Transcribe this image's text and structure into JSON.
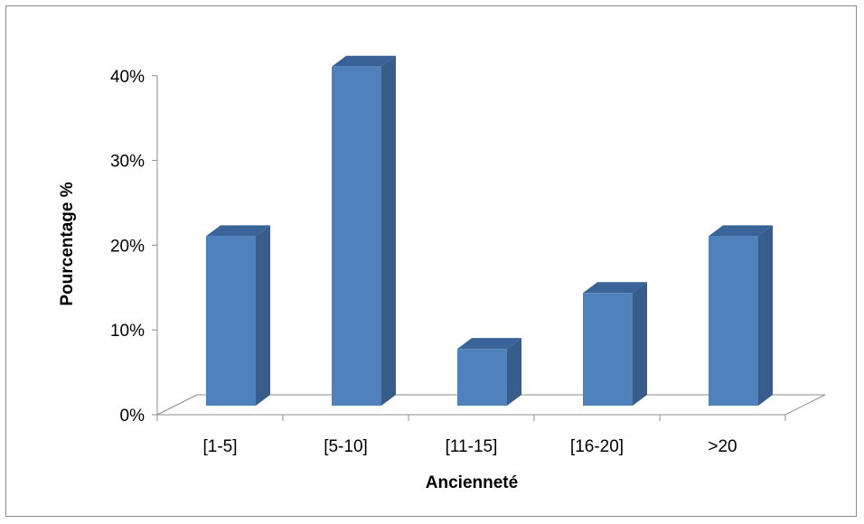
{
  "chart_data": {
    "type": "bar",
    "style": "3d-column",
    "categories": [
      "[1-5]",
      "[5-10]",
      "[11-15]",
      "[16-20]",
      ">20"
    ],
    "values": [
      20,
      40,
      6.7,
      13.3,
      20
    ],
    "xlabel": "Ancienneté",
    "ylabel": "Pourcentage %",
    "ylim": [
      0,
      40
    ],
    "yticks": [
      0,
      10,
      20,
      30,
      40
    ],
    "ytick_labels": [
      "0%",
      "10%",
      "20%",
      "30%",
      "40%"
    ],
    "grid": false,
    "legend": "none",
    "colors": {
      "bar_front": "#4F81BD",
      "bar_side": "#385D8A",
      "bar_top": "#3A6399",
      "axis": "#8C8C8C",
      "frame": "#8C8C8C"
    }
  }
}
